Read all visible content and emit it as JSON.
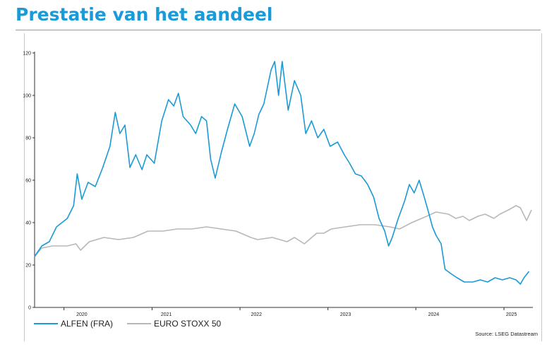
{
  "page": {
    "title": "Prestatie van het aandeel"
  },
  "chart_data": {
    "type": "line",
    "title": "",
    "xlabel": "",
    "ylabel": "",
    "ylim": [
      0,
      120
    ],
    "yticks": [
      0,
      20,
      40,
      60,
      80,
      100,
      120
    ],
    "xlim": [
      "2019-09-01",
      "2025-05-01"
    ],
    "xticks": [
      {
        "label": "2020",
        "date": "2020-03-15"
      },
      {
        "label": "2021",
        "date": "2021-03-01"
      },
      {
        "label": "2022",
        "date": "2022-03-10"
      },
      {
        "label": "2023",
        "date": "2023-03-15"
      },
      {
        "label": "2024",
        "date": "2024-03-15"
      },
      {
        "label": "2025",
        "date": "2025-02-01"
      }
    ],
    "legend_position": "bottom-left",
    "grid": false,
    "series": [
      {
        "name": "ALFEN (FRA)",
        "color": "#1a9ad6",
        "points": [
          [
            "2019-09-01",
            24
          ],
          [
            "2019-10-01",
            29
          ],
          [
            "2019-11-01",
            31
          ],
          [
            "2019-12-01",
            38
          ],
          [
            "2020-01-15",
            42
          ],
          [
            "2020-02-10",
            48
          ],
          [
            "2020-02-25",
            63
          ],
          [
            "2020-03-15",
            51
          ],
          [
            "2020-04-10",
            59
          ],
          [
            "2020-05-10",
            57
          ],
          [
            "2020-06-10",
            66
          ],
          [
            "2020-07-10",
            76
          ],
          [
            "2020-08-01",
            92
          ],
          [
            "2020-08-20",
            82
          ],
          [
            "2020-09-10",
            86
          ],
          [
            "2020-10-01",
            66
          ],
          [
            "2020-10-25",
            72
          ],
          [
            "2020-11-20",
            65
          ],
          [
            "2020-12-10",
            72
          ],
          [
            "2021-01-10",
            68
          ],
          [
            "2021-02-10",
            88
          ],
          [
            "2021-03-10",
            98
          ],
          [
            "2021-04-01",
            95
          ],
          [
            "2021-04-20",
            101
          ],
          [
            "2021-05-10",
            90
          ],
          [
            "2021-06-10",
            86
          ],
          [
            "2021-07-01",
            82
          ],
          [
            "2021-07-25",
            90
          ],
          [
            "2021-08-15",
            88
          ],
          [
            "2021-09-01",
            70
          ],
          [
            "2021-09-20",
            61
          ],
          [
            "2021-10-15",
            73
          ],
          [
            "2021-11-10",
            84
          ],
          [
            "2021-12-10",
            96
          ],
          [
            "2022-01-10",
            90
          ],
          [
            "2022-02-10",
            76
          ],
          [
            "2022-03-01",
            82
          ],
          [
            "2022-03-20",
            91
          ],
          [
            "2022-04-10",
            96
          ],
          [
            "2022-05-10",
            112
          ],
          [
            "2022-05-25",
            116
          ],
          [
            "2022-06-10",
            100
          ],
          [
            "2022-06-25",
            116
          ],
          [
            "2022-07-20",
            93
          ],
          [
            "2022-08-15",
            107
          ],
          [
            "2022-09-10",
            100
          ],
          [
            "2022-10-01",
            82
          ],
          [
            "2022-10-25",
            88
          ],
          [
            "2022-11-20",
            80
          ],
          [
            "2022-12-15",
            84
          ],
          [
            "2023-01-10",
            76
          ],
          [
            "2023-02-10",
            78
          ],
          [
            "2023-03-10",
            72
          ],
          [
            "2023-04-01",
            68
          ],
          [
            "2023-04-25",
            63
          ],
          [
            "2023-05-20",
            62
          ],
          [
            "2023-06-15",
            58
          ],
          [
            "2023-07-10",
            52
          ],
          [
            "2023-08-01",
            42
          ],
          [
            "2023-08-25",
            36
          ],
          [
            "2023-09-10",
            29
          ],
          [
            "2023-09-25",
            33
          ],
          [
            "2023-10-20",
            42
          ],
          [
            "2023-11-15",
            50
          ],
          [
            "2023-12-05",
            58
          ],
          [
            "2023-12-25",
            54
          ],
          [
            "2024-01-15",
            60
          ],
          [
            "2024-02-05",
            52
          ],
          [
            "2024-02-25",
            44
          ],
          [
            "2024-03-10",
            38
          ],
          [
            "2024-03-25",
            34
          ],
          [
            "2024-04-15",
            30
          ],
          [
            "2024-05-01",
            18
          ],
          [
            "2024-05-25",
            16
          ],
          [
            "2024-06-20",
            14
          ],
          [
            "2024-07-20",
            12
          ],
          [
            "2024-08-25",
            12
          ],
          [
            "2024-09-25",
            13
          ],
          [
            "2024-10-25",
            12
          ],
          [
            "2024-11-25",
            14
          ],
          [
            "2024-12-25",
            13
          ],
          [
            "2025-01-25",
            14
          ],
          [
            "2025-02-20",
            13
          ],
          [
            "2025-03-10",
            11
          ],
          [
            "2025-03-25",
            14
          ],
          [
            "2025-04-15",
            17
          ]
        ]
      },
      {
        "name": "EURO STOXX 50",
        "color": "#b8b8b8",
        "points": [
          [
            "2019-09-01",
            24
          ],
          [
            "2019-10-01",
            28
          ],
          [
            "2019-11-15",
            29
          ],
          [
            "2020-01-15",
            29
          ],
          [
            "2020-02-20",
            30
          ],
          [
            "2020-03-10",
            27
          ],
          [
            "2020-04-15",
            31
          ],
          [
            "2020-06-15",
            33
          ],
          [
            "2020-08-15",
            32
          ],
          [
            "2020-10-15",
            33
          ],
          [
            "2020-12-15",
            36
          ],
          [
            "2021-02-15",
            36
          ],
          [
            "2021-04-15",
            37
          ],
          [
            "2021-06-15",
            37
          ],
          [
            "2021-08-15",
            38
          ],
          [
            "2021-10-15",
            37
          ],
          [
            "2021-12-15",
            36
          ],
          [
            "2022-02-15",
            33
          ],
          [
            "2022-03-15",
            32
          ],
          [
            "2022-05-15",
            33
          ],
          [
            "2022-07-15",
            31
          ],
          [
            "2022-08-15",
            33
          ],
          [
            "2022-09-25",
            30
          ],
          [
            "2022-11-15",
            35
          ],
          [
            "2022-12-15",
            35
          ],
          [
            "2023-01-15",
            37
          ],
          [
            "2023-03-15",
            38
          ],
          [
            "2023-05-15",
            39
          ],
          [
            "2023-07-15",
            39
          ],
          [
            "2023-09-15",
            38
          ],
          [
            "2023-10-25",
            37
          ],
          [
            "2023-12-15",
            40
          ],
          [
            "2024-02-15",
            43
          ],
          [
            "2024-03-25",
            45
          ],
          [
            "2024-05-15",
            44
          ],
          [
            "2024-06-15",
            42
          ],
          [
            "2024-07-15",
            43
          ],
          [
            "2024-08-10",
            41
          ],
          [
            "2024-09-15",
            43
          ],
          [
            "2024-10-15",
            44
          ],
          [
            "2024-11-20",
            42
          ],
          [
            "2024-12-15",
            44
          ],
          [
            "2025-01-20",
            46
          ],
          [
            "2025-02-20",
            48
          ],
          [
            "2025-03-10",
            47
          ],
          [
            "2025-04-05",
            41
          ],
          [
            "2025-04-25",
            46
          ]
        ]
      }
    ],
    "source": "Source: LSEG Datastream"
  }
}
